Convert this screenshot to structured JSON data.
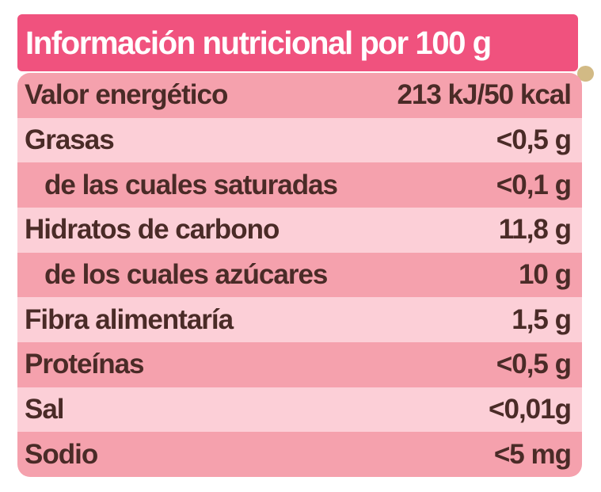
{
  "header": {
    "title": "Información nutricional por 100 g",
    "bg_color": "#F0527E",
    "text_color": "#FFFFFF"
  },
  "table": {
    "row_dark_bg": "#F5A1AD",
    "row_light_bg": "#FCCFD7",
    "text_color": "#4A2B27",
    "rows": [
      {
        "label": "Valor energético",
        "value": "213 kJ/50 kcal",
        "indent": false
      },
      {
        "label": "Grasas",
        "value": "<0,5 g",
        "indent": false
      },
      {
        "label": "de las cuales saturadas",
        "value": "<0,1 g",
        "indent": true
      },
      {
        "label": "Hidratos de carbono",
        "value": "11,8 g",
        "indent": false
      },
      {
        "label": "de los cuales azúcares",
        "value": "10 g",
        "indent": true
      },
      {
        "label": "Fibra alimentaría",
        "value": "1,5 g",
        "indent": false
      },
      {
        "label": "Proteínas",
        "value": "<0,5 g",
        "indent": false
      },
      {
        "label": "Sal",
        "value": "<0,01g",
        "indent": false
      },
      {
        "label": "Sodio",
        "value": "<5 mg",
        "indent": false
      }
    ]
  },
  "decor": {
    "corner_dot_color": "#D2BA85"
  }
}
